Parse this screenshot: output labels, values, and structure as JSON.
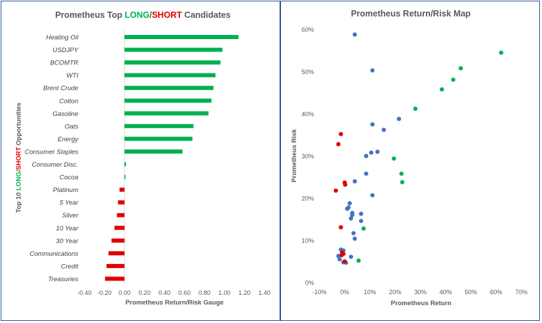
{
  "chart_data": [
    {
      "type": "bar",
      "orientation": "horizontal",
      "title_parts": [
        {
          "text": "Prometheus Top ",
          "color": "#595959"
        },
        {
          "text": "LONG",
          "color": "#00b050"
        },
        {
          "text": "/",
          "color": "#595959"
        },
        {
          "text": "SHORT",
          "color": "#e00000"
        },
        {
          "text": " Candidates",
          "color": "#595959"
        }
      ],
      "xlabel": "Prometheus Return/Risk Gauge",
      "ylabel_parts": [
        {
          "text": "Top 10 ",
          "color": "#595959"
        },
        {
          "text": "LONG",
          "color": "#00b050"
        },
        {
          "text": "/",
          "color": "#595959"
        },
        {
          "text": "SHORT",
          "color": "#e00000"
        },
        {
          "text": " Opportunities",
          "color": "#595959"
        }
      ],
      "xlim": [
        -0.4,
        1.4
      ],
      "xticks": [
        "-0.40",
        "-0.20",
        "0.00",
        "0.20",
        "0.40",
        "0.60",
        "0.80",
        "1.00",
        "1.20",
        "1.40"
      ],
      "categories": [
        "Heating Oil",
        "USDJPY",
        "BCOMTR",
        "WTI",
        "Brent Crude",
        "Cotton",
        "Gasoline",
        "Oats",
        "Energy",
        "Consumer Staples",
        "Consumer Disc.",
        "Cocoa",
        "Platinum",
        "5 Year",
        "Silver",
        "10 Year",
        "30 Year",
        "Communications",
        "Credit",
        "Treasuries"
      ],
      "values": [
        1.14,
        0.98,
        0.96,
        0.91,
        0.89,
        0.87,
        0.84,
        0.69,
        0.68,
        0.58,
        0.015,
        0.008,
        -0.05,
        -0.065,
        -0.075,
        -0.1,
        -0.13,
        -0.16,
        -0.18,
        -0.195
      ],
      "colors": {
        "long": "#00b050",
        "short": "#e00000"
      }
    },
    {
      "type": "scatter",
      "title": "Prometheus Return/Risk Map",
      "xlabel": "Prometheus Return",
      "ylabel": "Prometheus Risk",
      "xlim": [
        -0.1,
        0.7
      ],
      "ylim": [
        0,
        0.6
      ],
      "xticks": [
        "-10%",
        "0%",
        "10%",
        "20%",
        "30%",
        "40%",
        "50%",
        "60%",
        "70%"
      ],
      "yticks": [
        "0%",
        "10%",
        "20%",
        "30%",
        "40%",
        "50%",
        "60%"
      ],
      "colors": {
        "green": "#00b050",
        "blue": "#4472c4",
        "red": "#e00000"
      },
      "series": [
        {
          "color_key": "green",
          "points": [
            [
              0.62,
              0.545
            ],
            [
              0.46,
              0.508
            ],
            [
              0.43,
              0.481
            ],
            [
              0.385,
              0.458
            ],
            [
              0.28,
              0.412
            ],
            [
              0.195,
              0.294
            ],
            [
              0.225,
              0.258
            ],
            [
              0.228,
              0.238
            ],
            [
              0.075,
              0.128
            ],
            [
              0.055,
              0.052
            ]
          ]
        },
        {
          "color_key": "blue",
          "points": [
            [
              0.04,
              0.588
            ],
            [
              0.11,
              0.503
            ],
            [
              0.215,
              0.388
            ],
            [
              0.11,
              0.375
            ],
            [
              0.155,
              0.362
            ],
            [
              0.13,
              0.31
            ],
            [
              0.105,
              0.308
            ],
            [
              0.085,
              0.3
            ],
            [
              0.085,
              0.258
            ],
            [
              0.04,
              0.24
            ],
            [
              0.11,
              0.207
            ],
            [
              0.02,
              0.188
            ],
            [
              0.015,
              0.178
            ],
            [
              0.01,
              0.175
            ],
            [
              0.03,
              0.165
            ],
            [
              0.03,
              0.16
            ],
            [
              0.065,
              0.163
            ],
            [
              0.025,
              0.152
            ],
            [
              0.065,
              0.146
            ],
            [
              0.035,
              0.117
            ],
            [
              0.04,
              0.104
            ],
            [
              -0.015,
              0.078
            ],
            [
              -0.005,
              0.076
            ],
            [
              -0.01,
              0.071
            ],
            [
              0.025,
              0.061
            ],
            [
              -0.025,
              0.063
            ],
            [
              -0.02,
              0.055
            ],
            [
              0.005,
              0.047
            ],
            [
              -0.005,
              0.048
            ]
          ]
        },
        {
          "color_key": "red",
          "points": [
            [
              -0.015,
              0.352
            ],
            [
              -0.025,
              0.328
            ],
            [
              0.0,
              0.237
            ],
            [
              0.002,
              0.232
            ],
            [
              -0.035,
              0.218
            ],
            [
              -0.015,
              0.131
            ],
            [
              -0.01,
              0.071
            ],
            [
              -0.012,
              0.065
            ],
            [
              -0.005,
              0.068
            ],
            [
              0.0,
              0.05
            ]
          ]
        }
      ]
    }
  ]
}
